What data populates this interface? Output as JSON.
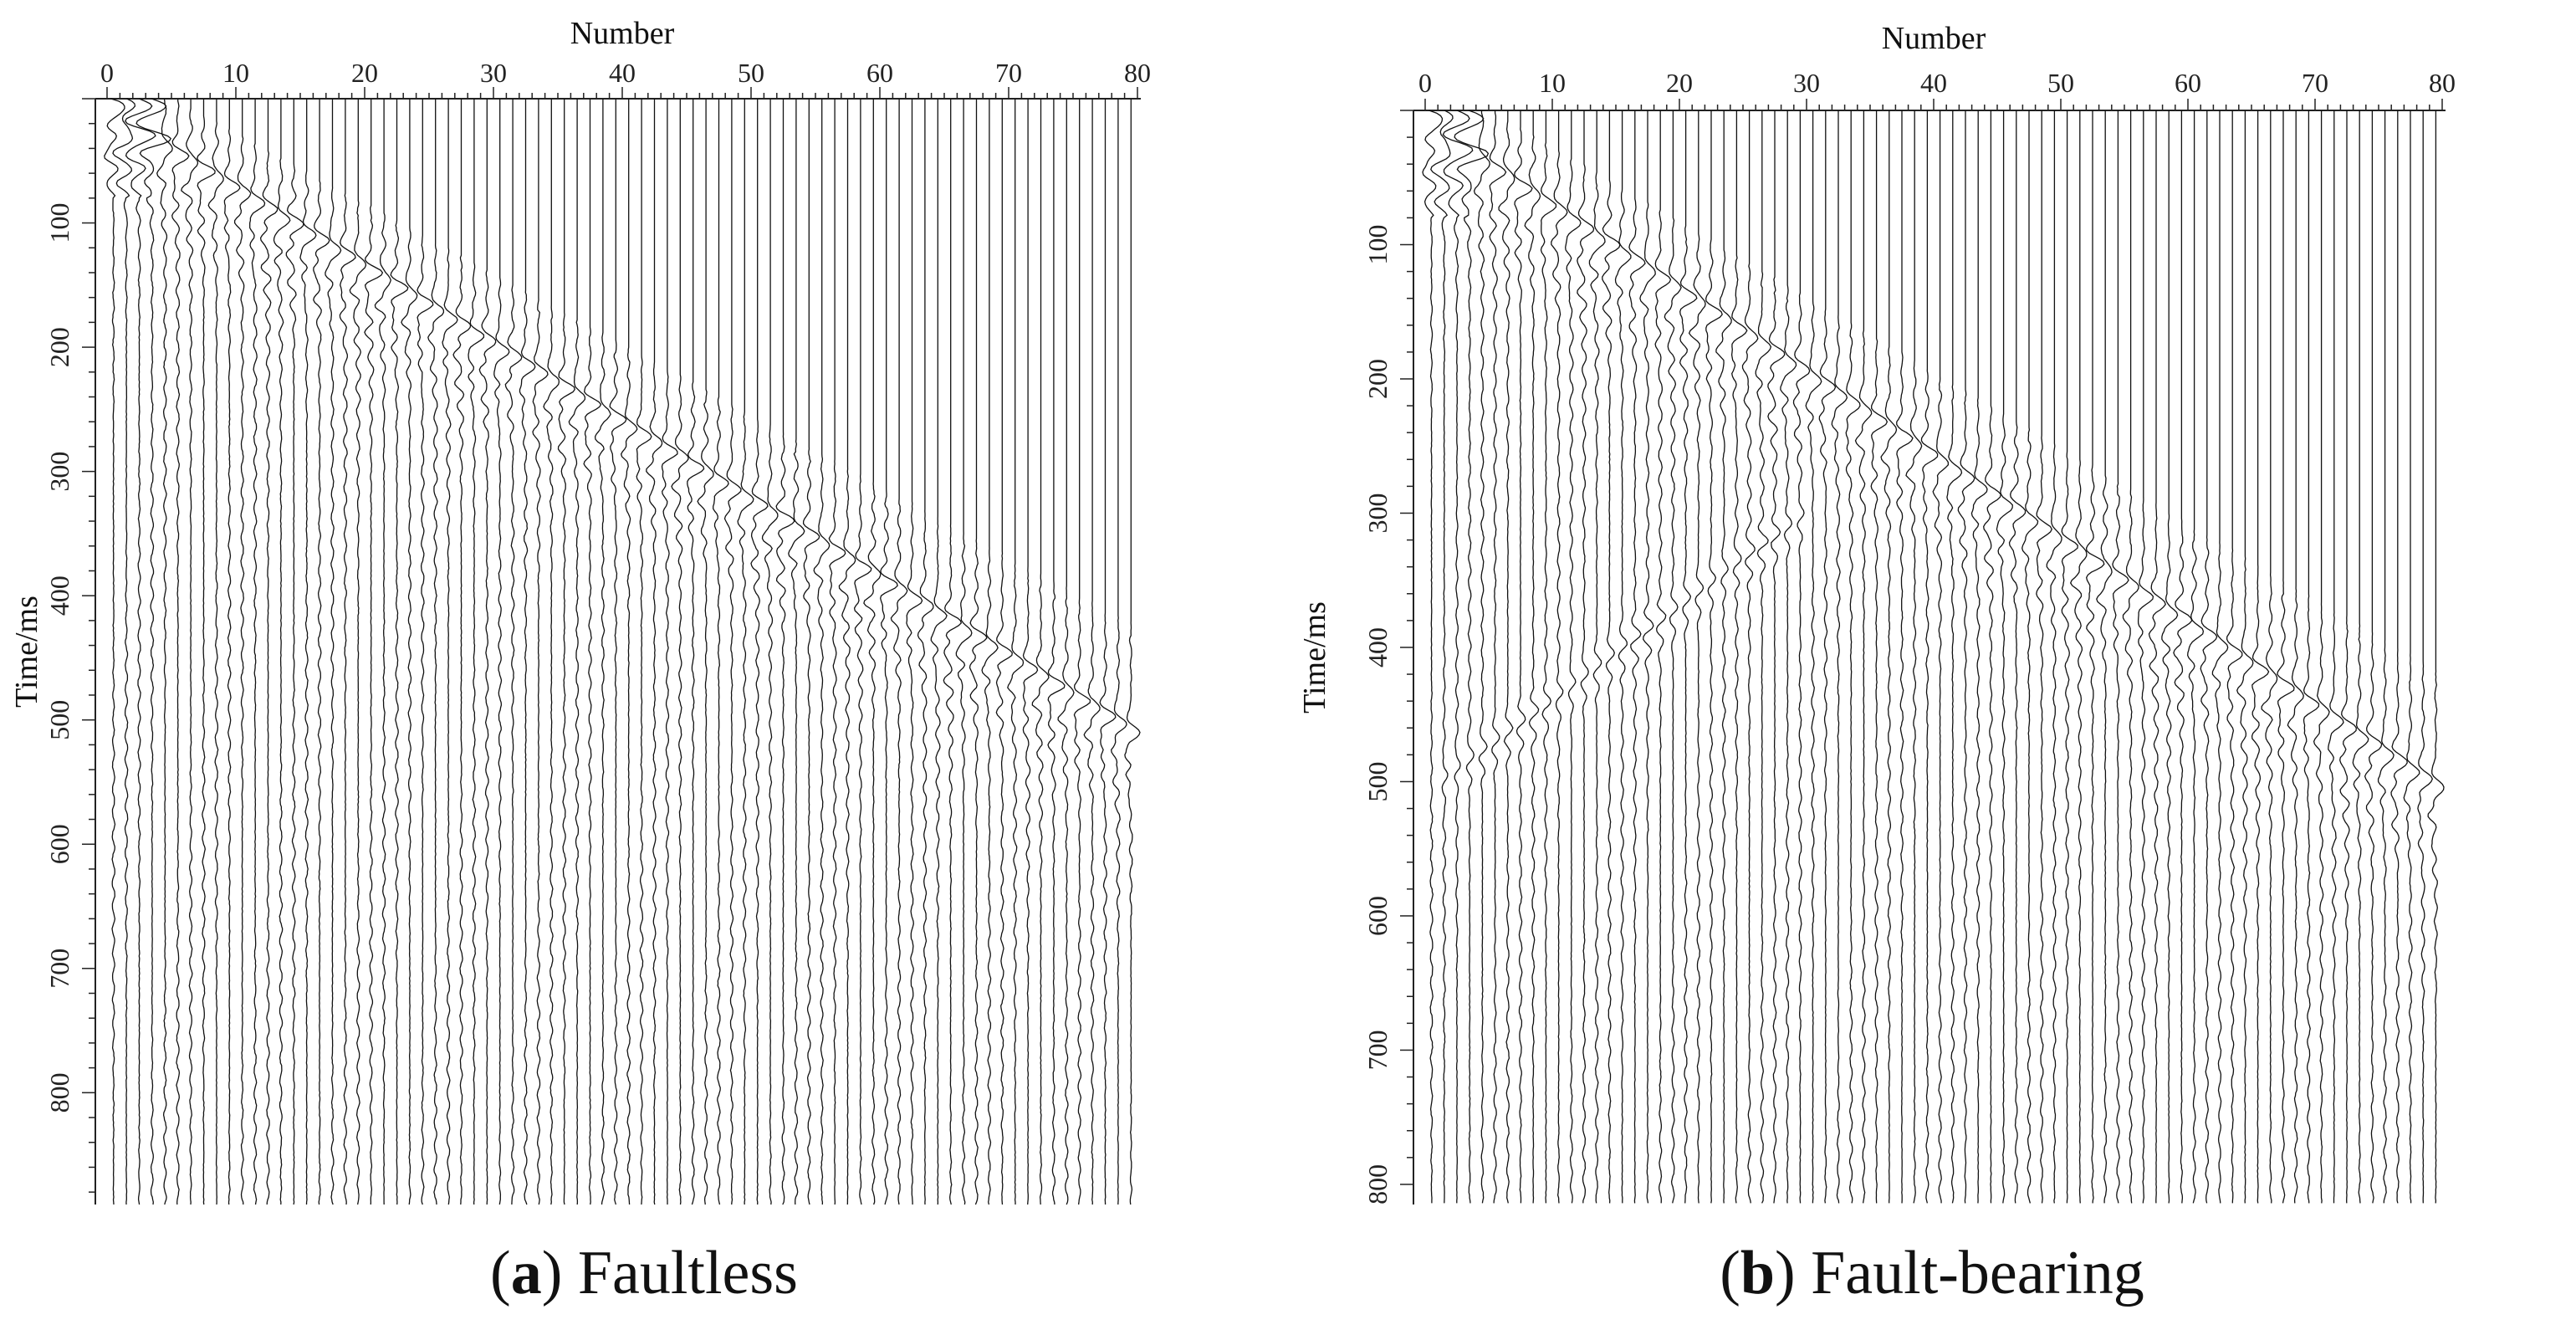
{
  "chart_data": [
    {
      "type": "seismic-wiggle",
      "title": "",
      "xlabel": "Number",
      "ylabel": "Time/ms",
      "xlim": [
        0,
        80
      ],
      "ylim": [
        0,
        890
      ],
      "x_ticks": [
        0,
        10,
        20,
        30,
        40,
        50,
        60,
        70,
        80
      ],
      "y_ticks": [
        100,
        200,
        300,
        400,
        500,
        600,
        700,
        800
      ],
      "traces": 80,
      "direct_wave": {
        "x": [
          1,
          80
        ],
        "time_ms": [
          15,
          510
        ]
      },
      "fault_reflection": null,
      "caption": {
        "letter": "a",
        "text": "Faultless"
      }
    },
    {
      "type": "seismic-wiggle",
      "title": "",
      "xlabel": "Number",
      "ylabel": "Time/ms",
      "xlim": [
        0,
        80
      ],
      "ylim": [
        0,
        815
      ],
      "x_ticks": [
        0,
        10,
        20,
        30,
        40,
        50,
        60,
        70,
        80
      ],
      "y_ticks": [
        100,
        200,
        300,
        400,
        500,
        600,
        700,
        800
      ],
      "traces": 80,
      "direct_wave": {
        "x": [
          1,
          80
        ],
        "time_ms": [
          15,
          505
        ]
      },
      "fault_reflection": {
        "x": [
          2,
          30
        ],
        "time_ms": [
          495,
          300
        ]
      },
      "caption": {
        "letter": "b",
        "text": "Fault-bearing"
      }
    }
  ]
}
